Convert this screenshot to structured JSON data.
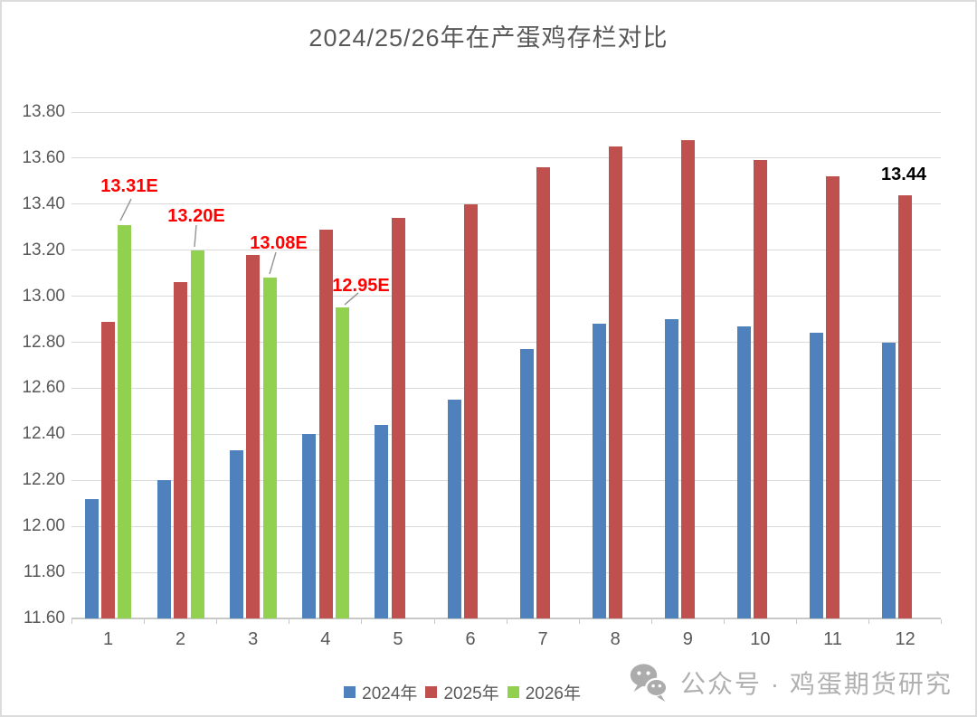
{
  "title": "2024/25/26年在产蛋鸡存栏对比",
  "chart_data": {
    "type": "bar",
    "categories": [
      "1",
      "2",
      "3",
      "4",
      "5",
      "6",
      "7",
      "8",
      "9",
      "10",
      "11",
      "12"
    ],
    "series": [
      {
        "name": "2024年",
        "color": "#4F81BD",
        "values": [
          12.12,
          12.2,
          12.33,
          12.4,
          12.44,
          12.55,
          12.77,
          12.88,
          12.9,
          12.87,
          12.84,
          12.8
        ]
      },
      {
        "name": "2025年",
        "color": "#C0504D",
        "values": [
          12.89,
          13.06,
          13.18,
          13.29,
          13.34,
          13.4,
          13.56,
          13.65,
          13.68,
          13.59,
          13.52,
          13.44
        ]
      },
      {
        "name": "2026年",
        "color": "#92D050",
        "values": [
          13.31,
          13.2,
          13.08,
          12.95,
          null,
          null,
          null,
          null,
          null,
          null,
          null,
          null
        ]
      }
    ],
    "title": "2024/25/26年在产蛋鸡存栏对比",
    "xlabel": "",
    "ylabel": "",
    "ylim": [
      11.6,
      13.8
    ],
    "ytick_step": 0.2,
    "grid": true,
    "legend_position": "bottom",
    "annotations": [
      {
        "text": "13.31E",
        "color": "#FF0000",
        "series": "2026年",
        "category": "1"
      },
      {
        "text": "13.20E",
        "color": "#FF0000",
        "series": "2026年",
        "category": "2"
      },
      {
        "text": "13.08E",
        "color": "#FF0000",
        "series": "2026年",
        "category": "3"
      },
      {
        "text": "12.95E",
        "color": "#FF0000",
        "series": "2026年",
        "category": "4"
      },
      {
        "text": "13.44",
        "color": "#000000",
        "series": "2025年",
        "category": "12"
      }
    ]
  },
  "legend": {
    "items": [
      {
        "label": "2024年",
        "color": "#4F81BD"
      },
      {
        "label": "2025年",
        "color": "#C0504D"
      },
      {
        "label": "2026年",
        "color": "#92D050"
      }
    ]
  },
  "watermark": {
    "icon": "wechat-icon",
    "text": "公众号 · 鸡蛋期货研究"
  },
  "colors": {
    "title_text": "#595959",
    "axis_text": "#595959",
    "gridline": "#D9D9D9",
    "annotation_estimate": "#FF0000",
    "annotation_actual": "#000000",
    "watermark_gray": "#B0B0B0"
  }
}
